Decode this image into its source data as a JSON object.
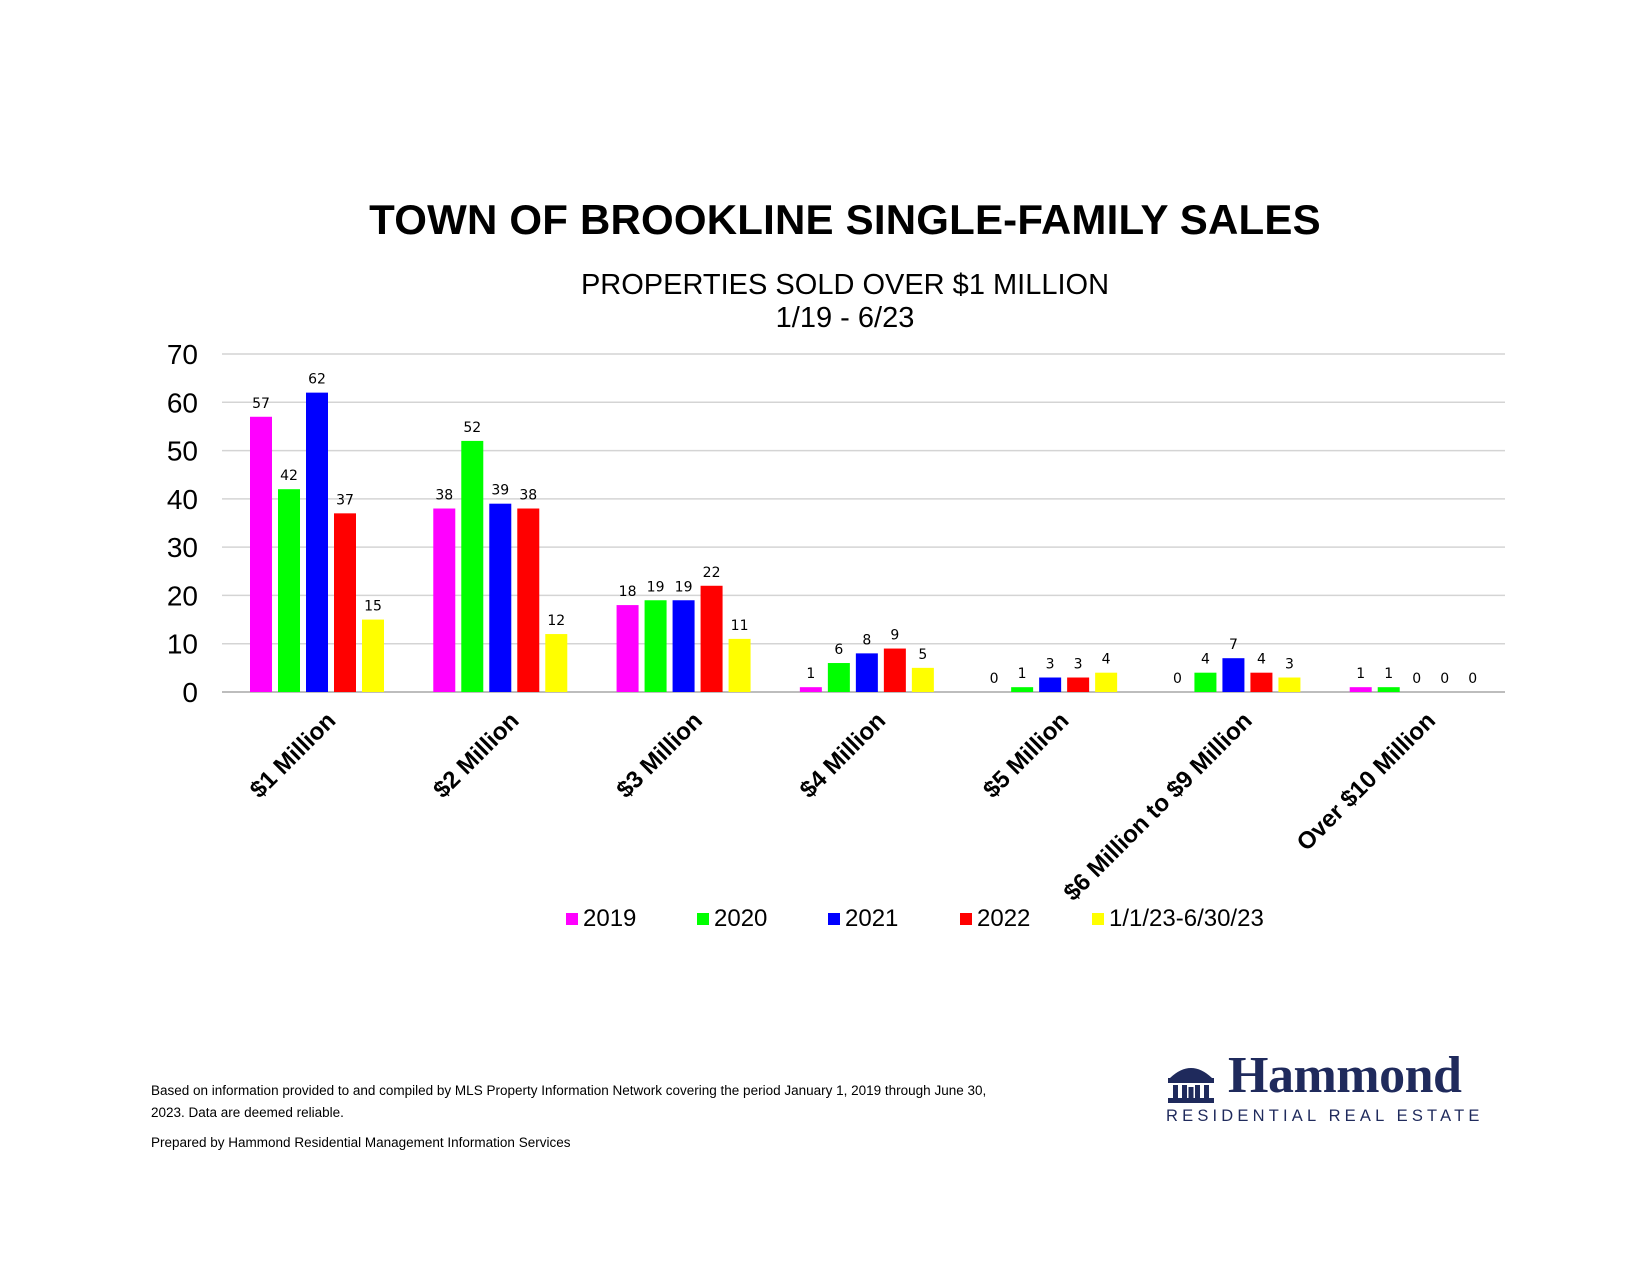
{
  "title": "TOWN OF BROOKLINE SINGLE-FAMILY SALES",
  "subtitle_line1": "PROPERTIES SOLD OVER $1 MILLION",
  "subtitle_line2": "1/19 -  6/23",
  "chart_data": {
    "type": "bar",
    "categories": [
      "$1 Million",
      "$2 Million",
      "$3 Million",
      "$4 Million",
      "$5 Million",
      "$6 Million to $9 Million",
      "Over $10 Million"
    ],
    "series": [
      {
        "name": "2019",
        "color": "#ff00ff",
        "values": [
          57,
          38,
          18,
          1,
          0,
          0,
          1
        ]
      },
      {
        "name": "2020",
        "color": "#00ff00",
        "values": [
          42,
          52,
          19,
          6,
          1,
          4,
          1
        ]
      },
      {
        "name": "2021",
        "color": "#0000ff",
        "values": [
          62,
          39,
          19,
          8,
          3,
          7,
          0
        ]
      },
      {
        "name": "2022",
        "color": "#ff0000",
        "values": [
          37,
          38,
          22,
          9,
          3,
          4,
          0
        ]
      },
      {
        "name": "1/1/23-6/30/23",
        "color": "#ffff00",
        "values": [
          15,
          12,
          11,
          5,
          4,
          3,
          0
        ]
      }
    ],
    "value_labels": [
      [
        "57",
        "42",
        "62",
        "37",
        "15"
      ],
      [
        "38",
        "52",
        "39",
        "38",
        "12"
      ],
      [
        "18",
        "19",
        "19",
        "22",
        "11"
      ],
      [
        "1",
        "6",
        "8",
        "9",
        "5"
      ],
      [
        "0",
        "1",
        "3",
        "3",
        "4"
      ],
      [
        "0",
        "4",
        "7",
        "4",
        "3"
      ],
      [
        "1",
        "1",
        "0",
        "0",
        "0"
      ]
    ],
    "ylim": [
      0,
      70
    ],
    "yticks": [
      "0",
      "10",
      "20",
      "30",
      "40",
      "50",
      "60",
      "70"
    ],
    "grid": true,
    "legend": "bottom-center",
    "xlabel": "",
    "ylabel": ""
  },
  "footnote_line1": "Based on information provided to and compiled by MLS Property Information Network covering the period January 1, 2019 through June 30, 2023. Data are deemed reliable.",
  "footnote_line2": "Prepared by Hammond Residential Management Information Services",
  "logo": {
    "name": "Hammond",
    "tagline": "RESIDENTIAL REAL ESTATE",
    "color": "#1f2a5c"
  }
}
